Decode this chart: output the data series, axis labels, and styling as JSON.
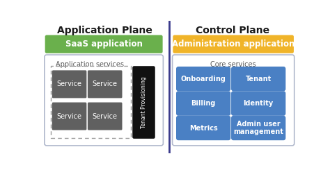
{
  "title_left": "Application Plane",
  "title_right": "Control Plane",
  "saas_label": "SaaS application",
  "saas_color": "#6ab04c",
  "admin_label": "Administration application",
  "admin_color": "#f0b429",
  "app_services_label": "Application services",
  "core_services_label": "Core services",
  "service_boxes": [
    "Service",
    "Service",
    "Service",
    "Service"
  ],
  "service_color": "#606060",
  "tenant_label": "Tenant Provisioning",
  "tenant_color": "#111111",
  "core_buttons": [
    [
      "Onboarding",
      "Tenant"
    ],
    [
      "Billing",
      "Identity"
    ],
    [
      "Metrics",
      "Admin user\nmanagement"
    ]
  ],
  "core_button_color": "#4a80c4",
  "bg_color": "#ffffff",
  "outer_border_color": "#b0b8cc",
  "divider_color": "#3a3a8c"
}
